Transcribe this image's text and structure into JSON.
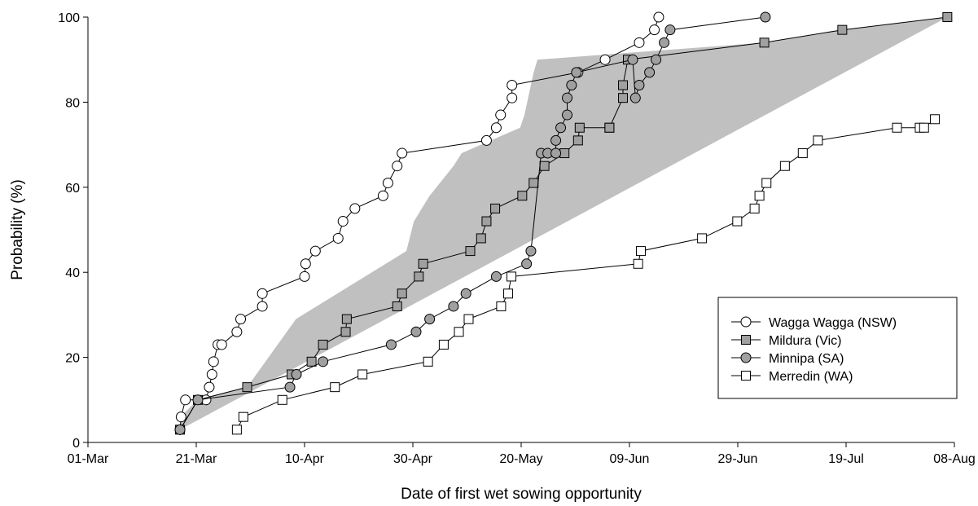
{
  "chart_data": {
    "type": "line",
    "title": "",
    "xlabel": "Date of first wet sowing opportunity",
    "ylabel": "Probability (%)",
    "x_ticks": [
      "01-Mar",
      "21-Mar",
      "10-Apr",
      "30-Apr",
      "20-May",
      "09-Jun",
      "29-Jun",
      "19-Jul",
      "08-Aug"
    ],
    "x_note": "x values are days after 01-Mar",
    "xlim": [
      0,
      160
    ],
    "ylim": [
      0,
      100
    ],
    "y_ticks": [
      0,
      20,
      40,
      60,
      80,
      100
    ],
    "grid": false,
    "legend_position": "bottom-right",
    "shaded_region": {
      "color": "#c0c0c0",
      "upper": [
        [
          17,
          6
        ],
        [
          20.3,
          10
        ],
        [
          29.4,
          13
        ],
        [
          38.4,
          29
        ],
        [
          58.8,
          45
        ],
        [
          60.2,
          52
        ],
        [
          63.1,
          58
        ],
        [
          67.5,
          65
        ],
        [
          69,
          68
        ],
        [
          79.8,
          74
        ],
        [
          80.6,
          77
        ],
        [
          82.3,
          87
        ],
        [
          83,
          90
        ],
        [
          124.9,
          94
        ],
        [
          139.3,
          97
        ],
        [
          158.7,
          100
        ]
      ],
      "lower": [
        [
          17,
          3
        ],
        [
          158.7,
          100
        ]
      ]
    },
    "series": [
      {
        "name": "Wagga Wagga (NSW)",
        "marker": "circle",
        "fill": "#ffffff",
        "x": [
          17,
          17.2,
          18,
          21.8,
          22.4,
          22.9,
          23.2,
          24,
          24.7,
          27.5,
          28.2,
          32.2,
          32.2,
          40,
          40.2,
          42,
          46.2,
          47.1,
          49.3,
          54.5,
          55.4,
          57.1,
          58,
          73.6,
          75.4,
          76.2,
          78.3,
          78.3,
          90.5,
          95.5,
          101.8,
          104.6,
          105.4
        ],
        "y": [
          3,
          6,
          10,
          10,
          13,
          16,
          19,
          23,
          23,
          26,
          29,
          32,
          35,
          39,
          42,
          45,
          48,
          52,
          55,
          58,
          61,
          65,
          68,
          71,
          74,
          77,
          81,
          84,
          87,
          90,
          94,
          97,
          100
        ]
      },
      {
        "name": "Mildura (Vic)",
        "marker": "square",
        "fill": "#a0a0a0",
        "x": [
          17,
          20.3,
          29.4,
          37.6,
          41.3,
          43.4,
          47.6,
          47.8,
          57.1,
          58,
          61.1,
          61.9,
          70.6,
          72.6,
          73.6,
          75.2,
          80.2,
          82.3,
          84.3,
          88,
          90.5,
          90.8,
          96.3,
          96.3,
          98.8,
          98.8,
          99.7,
          124.9,
          139.3,
          158.7
        ],
        "y": [
          3,
          10,
          13,
          16,
          19,
          23,
          26,
          29,
          32,
          35,
          39,
          42,
          45,
          48,
          52,
          55,
          58,
          61,
          65,
          68,
          71,
          74,
          74,
          74,
          81,
          84,
          90,
          94,
          97,
          100
        ],
        "note": ""
      },
      {
        "name": "Minnipa (SA)",
        "marker": "circle",
        "fill": "#a0a0a0",
        "x": [
          17,
          20.3,
          37.3,
          38.5,
          43.4,
          56,
          60.6,
          63.1,
          67.5,
          69.8,
          75.4,
          81,
          81.8,
          83.7,
          84.9,
          86.4,
          86.4,
          87.3,
          88.5,
          88.5,
          89.3,
          90.2,
          100.6,
          101.1,
          101.8,
          103.7,
          104.9,
          106.4,
          107.5,
          125.1
        ],
        "y": [
          3,
          10,
          13,
          16,
          19,
          23,
          26,
          29,
          32,
          35,
          39,
          42,
          45,
          68,
          68,
          68,
          71,
          74,
          77,
          81,
          84,
          87,
          90,
          81,
          84,
          87,
          90,
          94,
          97,
          100
        ]
      },
      {
        "name": "Merredin (WA)",
        "marker": "square",
        "fill": "#ffffff",
        "x": [
          27.5,
          28.7,
          35.9,
          45.6,
          50.7,
          62.8,
          65.7,
          68.5,
          70.3,
          76.3,
          77.6,
          78.2,
          101.6,
          102.1,
          113.4,
          119.9,
          123.1,
          124,
          125.3,
          128.7,
          132,
          134.8,
          149.4,
          153.6,
          154.4,
          156.4
        ],
        "y": [
          3,
          6,
          10,
          13,
          16,
          19,
          23,
          26,
          29,
          32,
          35,
          39,
          42,
          45,
          48,
          52,
          55,
          58,
          61,
          65,
          68,
          71,
          74,
          74,
          74,
          76
        ]
      }
    ]
  }
}
